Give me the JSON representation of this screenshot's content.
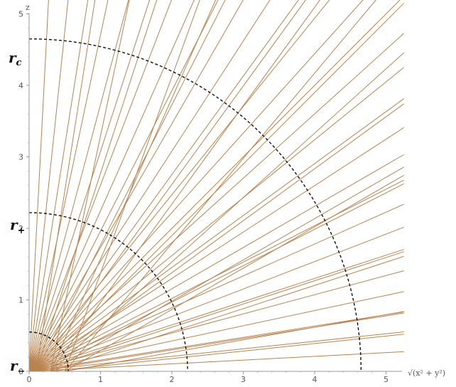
{
  "chart_data": {
    "type": "line",
    "title": "",
    "xlabel": "√(x² + y²)",
    "ylabel": "z",
    "xlim": [
      0,
      5.25
    ],
    "ylim": [
      0,
      5.25
    ],
    "xticks": [
      "0",
      "1",
      "2",
      "3",
      "4",
      "5"
    ],
    "yticks": [
      "0",
      "1",
      "2",
      "3",
      "4",
      "5"
    ],
    "grid": false,
    "colors": {
      "lines": "#b8834f",
      "circles": "#111111",
      "axes": "#999999"
    },
    "series": [
      {
        "kind": "radial-rays",
        "source": [
          0.0,
          0.0
        ],
        "angles_deg_from_vertical": [
          3,
          6,
          9,
          12,
          15,
          18,
          21,
          24,
          27,
          30,
          33,
          36,
          39,
          42,
          45,
          48,
          51,
          54,
          57,
          60,
          63,
          66,
          69,
          72,
          75,
          78,
          81,
          84,
          87
        ]
      },
      {
        "kind": "radial-rays",
        "source": [
          0.1,
          0.0
        ],
        "angles_deg_from_vertical": [
          9,
          18,
          27,
          36,
          45,
          54,
          63,
          72,
          81
        ]
      },
      {
        "kind": "radial-rays",
        "source": [
          0.3,
          0.0
        ],
        "angles_deg_from_vertical": [
          12,
          24,
          36,
          48,
          60,
          72,
          84
        ]
      },
      {
        "kind": "radial-rays",
        "source": [
          0.5,
          0.0
        ],
        "angles_deg_from_vertical": [
          20,
          40,
          60,
          80
        ]
      }
    ],
    "circles": [
      {
        "name": "r_c",
        "radius": 4.65
      },
      {
        "name": "r_+",
        "radius": 2.22
      },
      {
        "name": "r_-",
        "radius": 0.55
      }
    ],
    "labels": {
      "rc_main": "r",
      "rc_sub": "c",
      "rp_main": "r",
      "rp_sub": "+",
      "rm_main": "r",
      "rm_sub": "−"
    }
  }
}
